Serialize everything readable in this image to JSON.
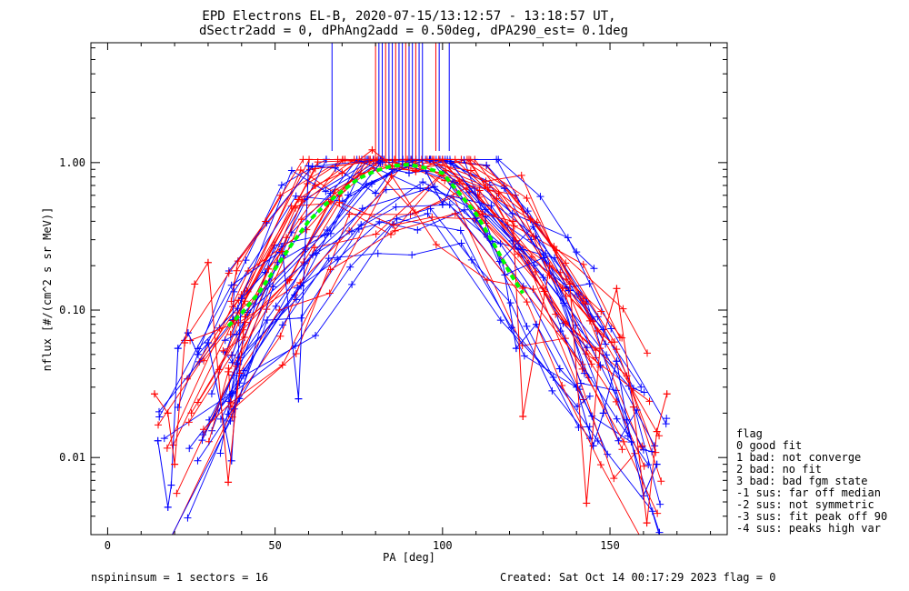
{
  "chart_data": {
    "type": "scatter",
    "title": "EPD Electrons EL-B, 2020-07-15/13:12:57 - 13:18:57 UT,",
    "subtitle": "dSectr2add = 0, dPhAng2add = 0.50deg, dPA290_est=   0.1deg",
    "xlabel": "PA [deg]",
    "ylabel": "nflux [#/(cm^2 s sr MeV)]",
    "xlim": [
      -5,
      185
    ],
    "ylim": [
      0.003,
      6.5
    ],
    "yscale": "log",
    "grid": false,
    "x_ticks": [
      {
        "value": 0,
        "label": "0"
      },
      {
        "value": 50,
        "label": "50"
      },
      {
        "value": 100,
        "label": "100"
      },
      {
        "value": 150,
        "label": "150"
      }
    ],
    "y_ticks": [
      {
        "value": 0.01,
        "label": "0.01"
      },
      {
        "value": 0.1,
        "label": "0.10"
      },
      {
        "value": 1.0,
        "label": "1.00"
      }
    ],
    "series": [
      {
        "color": "#0000ff",
        "marker": "plus",
        "x": [
          15,
          18,
          19,
          21,
          24,
          27,
          30,
          37,
          40,
          47,
          52,
          57,
          60,
          68,
          80,
          85,
          90,
          95,
          100,
          103,
          110,
          118,
          122,
          128,
          135,
          140,
          145,
          148,
          152,
          155,
          160,
          164
        ],
        "y": [
          0.013,
          0.0046,
          0.0065,
          0.055,
          0.07,
          0.05,
          0.06,
          0.0095,
          0.12,
          0.18,
          0.27,
          0.025,
          0.95,
          0.92,
          0.62,
          0.9,
          0.85,
          0.88,
          0.52,
          0.72,
          0.42,
          0.21,
          0.055,
          0.08,
          0.04,
          0.03,
          0.012,
          0.02,
          0.045,
          0.018,
          0.0055,
          0.009
        ]
      },
      {
        "color": "#ff0000",
        "marker": "plus",
        "x": [
          14,
          18,
          20,
          23,
          26,
          30,
          36,
          41,
          48,
          52,
          58,
          62,
          70,
          79,
          85,
          92,
          100,
          105,
          112,
          121,
          124,
          132,
          138,
          143,
          147,
          152,
          157,
          161,
          164,
          167
        ],
        "y": [
          0.027,
          0.02,
          0.009,
          0.06,
          0.15,
          0.21,
          0.0068,
          0.09,
          0.19,
          0.25,
          0.55,
          0.7,
          0.85,
          1.22,
          0.95,
          0.87,
          1.05,
          0.75,
          0.45,
          0.4,
          0.019,
          0.2,
          0.15,
          0.0049,
          0.055,
          0.14,
          0.022,
          0.0036,
          0.015,
          0.027
        ]
      }
    ],
    "fit_curve": {
      "color": "#00ff00",
      "style": "dashed",
      "x": [
        36,
        40,
        45,
        50,
        55,
        60,
        65,
        70,
        75,
        80,
        85,
        90,
        95,
        100,
        105,
        110,
        115,
        120,
        124
      ],
      "y": [
        0.078,
        0.095,
        0.13,
        0.19,
        0.28,
        0.4,
        0.52,
        0.64,
        0.78,
        0.88,
        0.95,
        0.97,
        0.92,
        0.85,
        0.62,
        0.45,
        0.29,
        0.18,
        0.13
      ]
    },
    "spike_x": [
      67,
      80,
      81,
      82,
      83,
      84,
      85,
      86,
      87,
      88,
      89,
      90,
      91,
      92,
      93,
      94,
      98,
      99,
      102
    ]
  },
  "footer": {
    "left": "nspininsum =  1  sectors = 16",
    "right": "Created: Sat Oct 14 00:17:29 2023   flag = 0"
  },
  "legend": {
    "title": "flag",
    "items": [
      " 0 good fit",
      " 1 bad: not converge",
      " 2 bad: no fit",
      " 3 bad: bad fgm state",
      "-1 sus: far off median",
      "-2 sus: not symmetric",
      "-3 sus: fit peak off 90",
      "-4 sus: peaks high var"
    ]
  },
  "colors": {
    "blue": "#0000ff",
    "red": "#ff0000",
    "green": "#00ff00",
    "axis": "#000000"
  }
}
